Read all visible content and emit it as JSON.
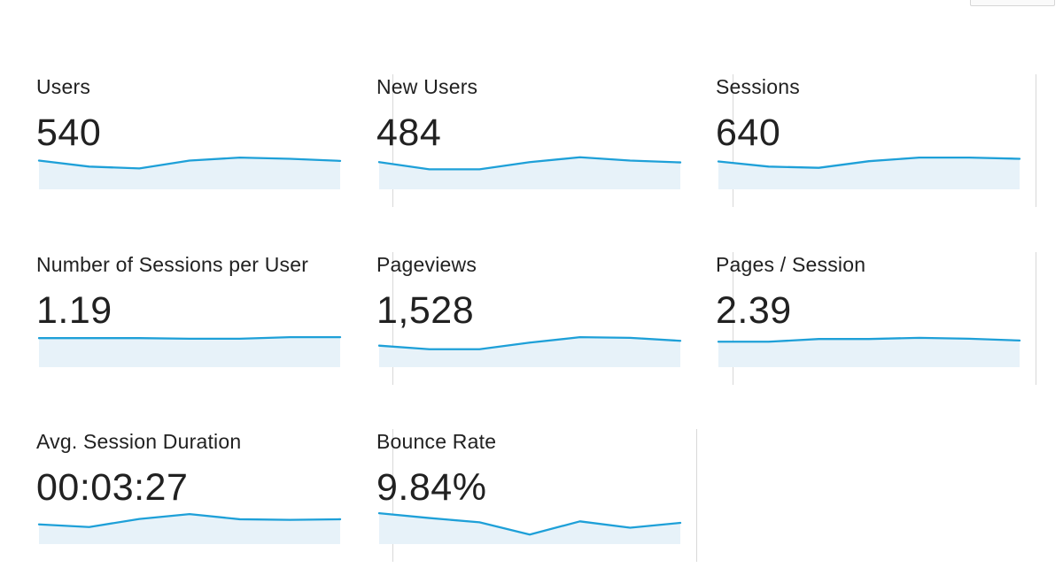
{
  "metrics": [
    {
      "label": "Users",
      "value": "540",
      "trend": [
        0.72,
        0.52,
        0.46,
        0.72,
        0.82,
        0.78,
        0.71
      ]
    },
    {
      "label": "New Users",
      "value": "484",
      "trend": [
        0.67,
        0.43,
        0.43,
        0.67,
        0.83,
        0.72,
        0.66
      ]
    },
    {
      "label": "Sessions",
      "value": "640",
      "trend": [
        0.69,
        0.52,
        0.48,
        0.7,
        0.82,
        0.82,
        0.78
      ]
    },
    {
      "label": "Number of Sessions per User",
      "value": "1.19",
      "trend": [
        0.73,
        0.73,
        0.73,
        0.71,
        0.71,
        0.76,
        0.76
      ]
    },
    {
      "label": "Pageviews",
      "value": "1,528",
      "trend": [
        0.48,
        0.36,
        0.36,
        0.58,
        0.76,
        0.74,
        0.64
      ]
    },
    {
      "label": "Pages / Session",
      "value": "2.39",
      "trend": [
        0.61,
        0.61,
        0.7,
        0.7,
        0.74,
        0.71,
        0.65
      ]
    },
    {
      "label": "Avg. Session Duration",
      "value": "00:03:27",
      "trend": [
        0.42,
        0.33,
        0.6,
        0.76,
        0.59,
        0.57,
        0.59
      ]
    },
    {
      "label": "Bounce Rate",
      "value": "9.84%",
      "trend": [
        0.79,
        0.63,
        0.49,
        0.08,
        0.52,
        0.31,
        0.47
      ]
    }
  ],
  "colors": {
    "line": "#1ea0d8",
    "fill": "#e7f2f9",
    "divider": "#d8d8d8",
    "text": "#212121"
  }
}
